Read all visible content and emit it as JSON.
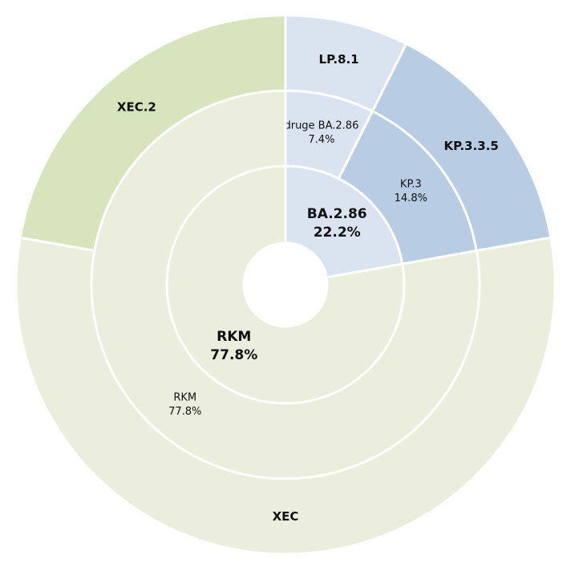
{
  "chart_data": {
    "type": "sunburst",
    "rings": [
      {
        "names": [
          "BA.2.86",
          "RKM"
        ],
        "values": [
          22.2,
          77.8
        ],
        "value_labels": [
          "22.2%",
          "77.8%"
        ],
        "colors": [
          "#dae3f0",
          "#ebeedd"
        ]
      },
      {
        "names": [
          "druge BA.2.86",
          "KP.3",
          "RKM"
        ],
        "values": [
          7.4,
          14.8,
          77.8
        ],
        "value_labels": [
          "7.4%",
          "14.8%",
          "77.8%"
        ],
        "colors": [
          "#dae3f0",
          "#b8cce4",
          "#ebeedd"
        ]
      },
      {
        "names": [
          "LP.8.1",
          "KP.3.3.5",
          "XEC",
          "XEC.2"
        ],
        "values": [
          7.4,
          14.8,
          55.6,
          22.2
        ],
        "colors": [
          "#dae3f0",
          "#b8cce4",
          "#ebeedd",
          "#d7e4bd"
        ]
      }
    ]
  }
}
